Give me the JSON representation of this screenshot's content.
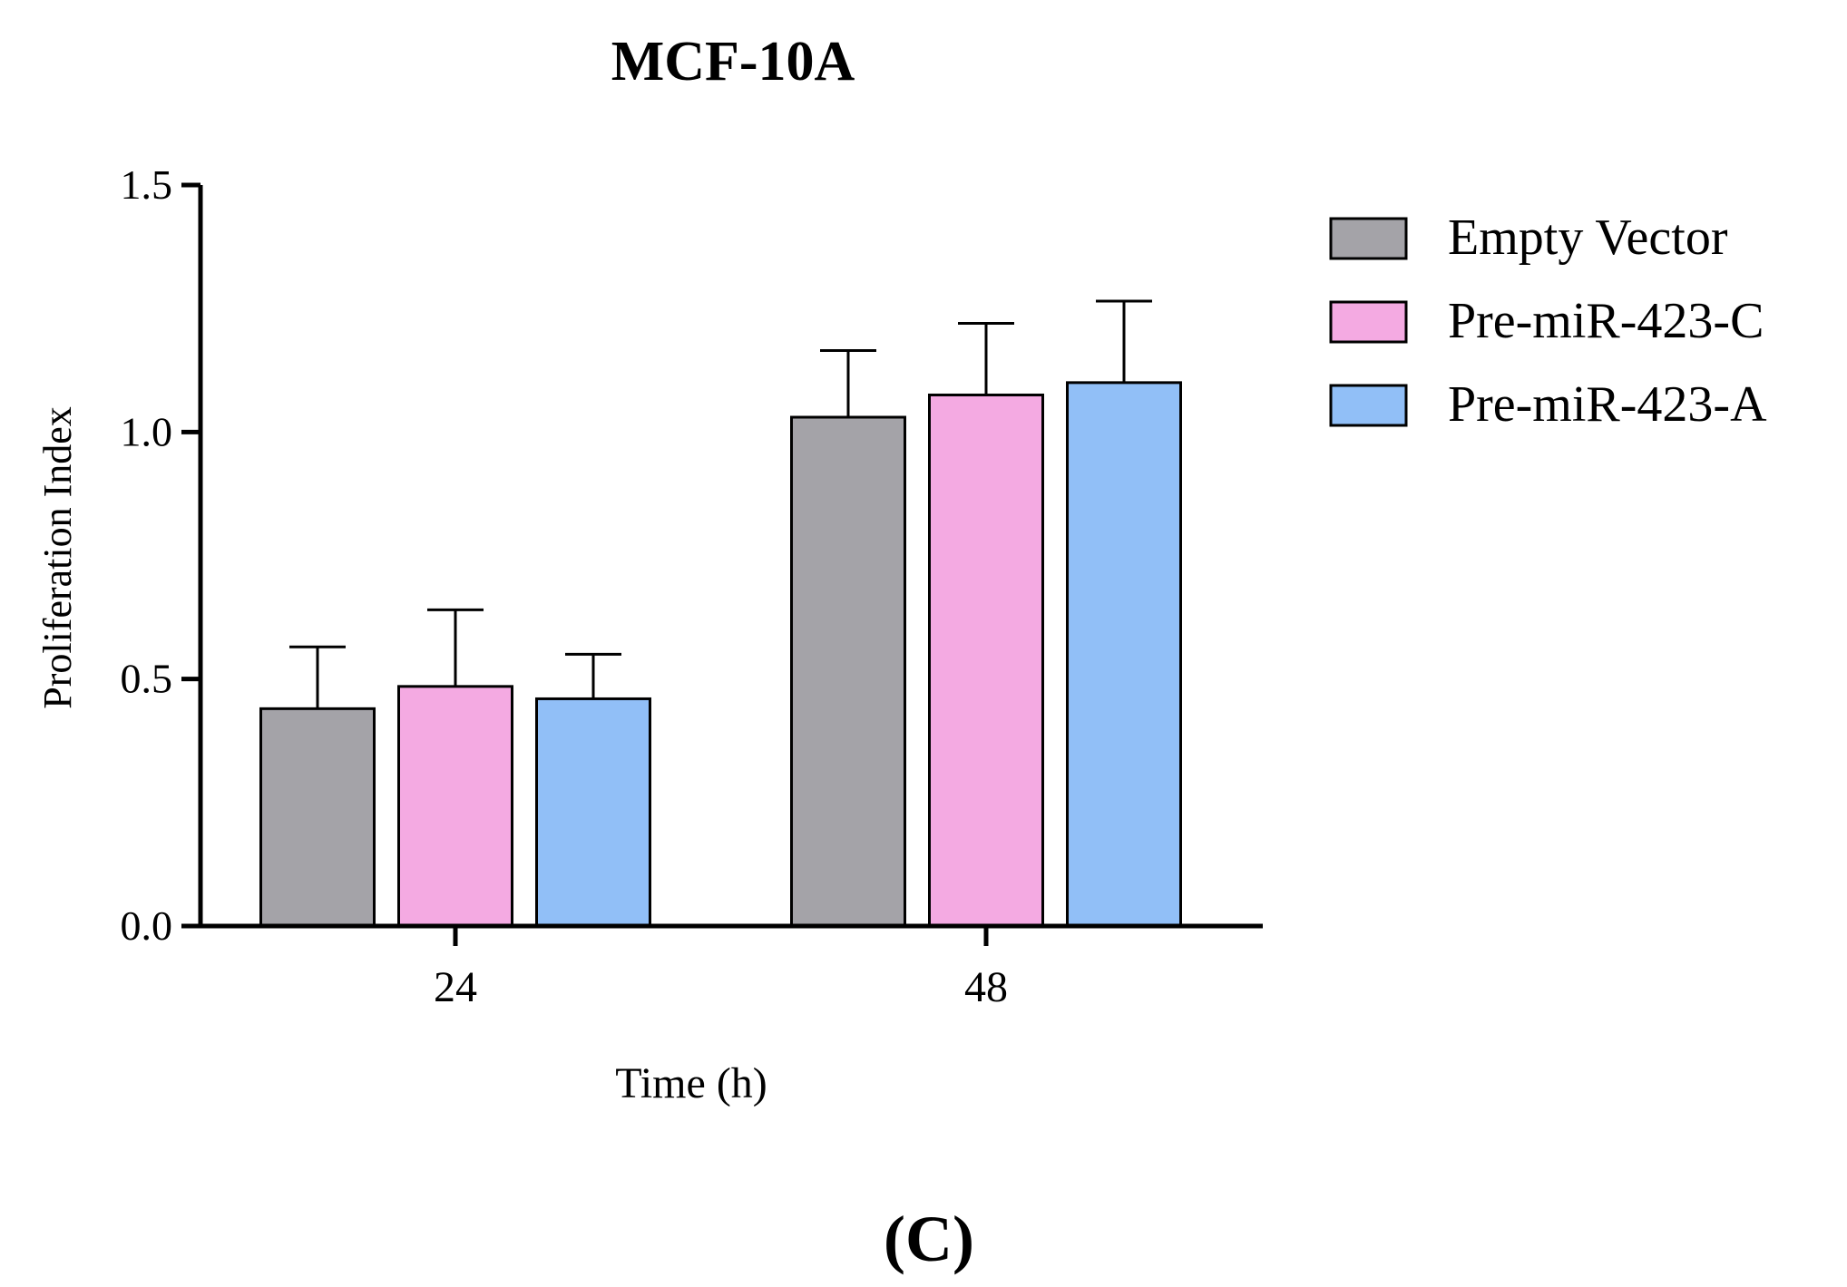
{
  "panel_label": "(C)",
  "chart_data": {
    "type": "bar",
    "title": "MCF-10A",
    "xlabel": "Time (h)",
    "ylabel": "Proliferation Index",
    "ylim": [
      0,
      1.5
    ],
    "yticks": [
      0.0,
      0.5,
      1.0,
      1.5
    ],
    "ytick_labels": [
      "0.0",
      "0.5",
      "1.0",
      "1.5"
    ],
    "categories": [
      "24",
      "48"
    ],
    "series": [
      {
        "name": "Empty Vector",
        "color": "#a4a3a8",
        "values": [
          0.44,
          1.03
        ],
        "errors": [
          0.125,
          0.135
        ]
      },
      {
        "name": "Pre-miR-423-C",
        "color": "#f4aae2",
        "values": [
          0.485,
          1.075
        ],
        "errors": [
          0.155,
          0.145
        ]
      },
      {
        "name": "Pre-miR-423-A",
        "color": "#91bff7",
        "values": [
          0.46,
          1.1
        ],
        "errors": [
          0.09,
          0.165
        ]
      }
    ],
    "legend_position": "top-right",
    "error_bars": "upper"
  }
}
